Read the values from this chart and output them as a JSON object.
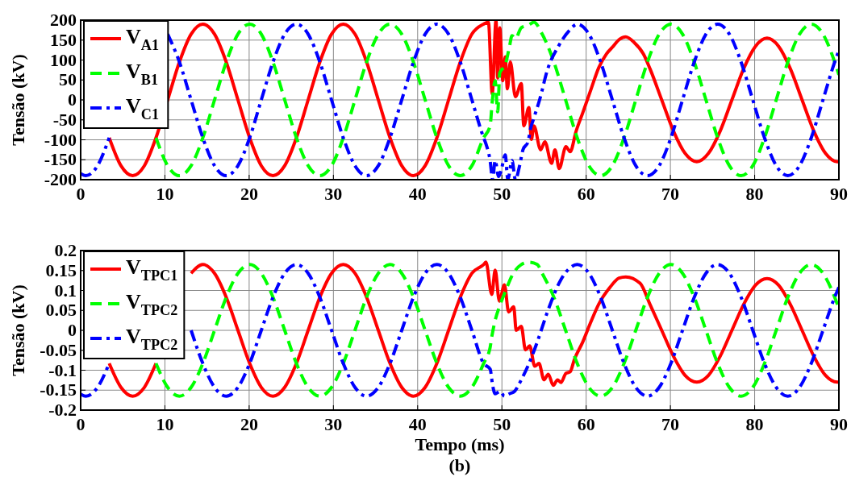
{
  "chart_data": [
    {
      "type": "line",
      "ylabel": "Tensão (kV)",
      "xlim": [
        0,
        90
      ],
      "ylim": [
        -200,
        200
      ],
      "xticks": [
        0,
        10,
        20,
        30,
        40,
        50,
        60,
        70,
        80,
        90
      ],
      "yticks": [
        -200,
        -150,
        -100,
        -50,
        0,
        50,
        100,
        150,
        200
      ],
      "grid": true,
      "legend": "top left",
      "series": [
        {
          "name": "V$_{A1}$",
          "color": "#ff0000",
          "line_style": "solid",
          "x": [
            3.39,
            4.78,
            6.17,
            7.56,
            8.94,
            10.33,
            11.72,
            13.11,
            14.5,
            15.89,
            17.28,
            18.67,
            20.06,
            21.44,
            22.83,
            24.22,
            25.61,
            27.0,
            28.39,
            29.78,
            31.17,
            32.56,
            33.94,
            35.33,
            36.72,
            38.11,
            39.5,
            40.89,
            42.28,
            43.67,
            45.06,
            46.44,
            47.83,
            48.4,
            48.85,
            49.3,
            49.5,
            49.75,
            50.1,
            50.4,
            50.65,
            51.0,
            51.6,
            52.3,
            52.6,
            53.2,
            53.5,
            53.8,
            54.6,
            55.1,
            55.9,
            56.3,
            56.8,
            57.6,
            58.1,
            58.8,
            59.6,
            60.6,
            61.5,
            62.4,
            63.2,
            63.9,
            64.7,
            65.7,
            66.8,
            67.58,
            68.97,
            70.36,
            71.74,
            73.13,
            74.52,
            75.91,
            77.3,
            78.69,
            80.08,
            81.47,
            82.86,
            84.24,
            85.63,
            87.02,
            88.41,
            89.8,
            90
          ],
          "values": [
            -95,
            -165,
            -190,
            -165,
            -95,
            0,
            95,
            165,
            190,
            165,
            95,
            0,
            -95,
            -165,
            -190,
            -165,
            -95,
            0,
            95,
            165,
            190,
            165,
            95,
            0,
            -95,
            -165,
            -190,
            -165,
            -95,
            0,
            95,
            165,
            190,
            195,
            15,
            200,
            55,
            181,
            48,
            108,
            28,
            95,
            8,
            41,
            -65,
            -19,
            -99,
            -65,
            -125,
            -105,
            -159,
            -125,
            -172,
            -117,
            -130,
            -79,
            -32,
            28,
            81,
            115,
            134,
            151,
            158,
            144,
            115,
            78,
            0,
            -78,
            -134,
            -155,
            -134,
            -78,
            0,
            78,
            134,
            155,
            134,
            78,
            0,
            -78,
            -134,
            -155,
            -155
          ]
        },
        {
          "name": "V$_{B1}$",
          "color": "#00ff00",
          "line_style": "dashed",
          "x": [
            8.94,
            10.33,
            11.72,
            13.11,
            14.5,
            15.89,
            17.28,
            18.67,
            20.06,
            21.44,
            22.83,
            24.22,
            25.61,
            27.0,
            28.39,
            29.78,
            31.17,
            32.56,
            33.94,
            35.33,
            36.72,
            38.11,
            39.5,
            40.89,
            42.28,
            43.67,
            45.06,
            46.44,
            47.83,
            48.6,
            48.85,
            49.2,
            49.5,
            49.75,
            50.4,
            50.9,
            51.2,
            51.6,
            52.3,
            53.2,
            53.8,
            54.78,
            56.17,
            57.56,
            58.94,
            60.33,
            61.72,
            63.11,
            64.5,
            65.89,
            67.28,
            68.67,
            70.06,
            71.44,
            72.83,
            74.22,
            75.61,
            77.0,
            78.39,
            79.78,
            81.17,
            82.56,
            83.94,
            85.33,
            86.72,
            88.11,
            89.5,
            90
          ],
          "values": [
            -95,
            -165,
            -190,
            -165,
            -95,
            0,
            95,
            165,
            190,
            165,
            95,
            0,
            -95,
            -165,
            -190,
            -165,
            -95,
            0,
            95,
            165,
            190,
            165,
            95,
            0,
            -95,
            -165,
            -190,
            -165,
            -95,
            -65,
            -5,
            48,
            -30,
            68,
            88,
            134,
            161,
            154,
            181,
            188,
            195,
            165,
            95,
            0,
            -95,
            -165,
            -190,
            -165,
            -95,
            0,
            95,
            165,
            190,
            165,
            95,
            0,
            -95,
            -165,
            -190,
            -165,
            -95,
            0,
            95,
            165,
            190,
            165,
            95,
            63
          ]
        },
        {
          "name": "V$_{C1}$",
          "color": "#0000ff",
          "line_style": "dashdot",
          "x": [
            0,
            0.61,
            2.0,
            3.39,
            4.78,
            6.17,
            7.56,
            8.94,
            10.33,
            11.72,
            13.11,
            14.5,
            15.89,
            17.28,
            18.67,
            20.06,
            21.44,
            22.83,
            24.22,
            25.61,
            27.0,
            28.39,
            29.78,
            31.17,
            32.56,
            33.94,
            35.33,
            36.72,
            38.11,
            39.5,
            40.89,
            42.28,
            43.67,
            45.06,
            46.44,
            47.83,
            48.1,
            48.6,
            48.9,
            49.2,
            49.6,
            49.9,
            50.4,
            50.7,
            51.2,
            51.6,
            52.1,
            52.5,
            53.1,
            53.4,
            53.8,
            54.5,
            55.4,
            56.7,
            58.0,
            58.94,
            60.33,
            61.72,
            63.11,
            64.5,
            65.89,
            67.28,
            68.67,
            70.06,
            71.44,
            72.83,
            74.22,
            75.61,
            77.0,
            78.39,
            79.78,
            81.17,
            82.56,
            83.94,
            85.33,
            86.72,
            88.11,
            89.5,
            90
          ],
          "values": [
            -185,
            -190,
            -165,
            -95,
            null,
            null,
            null,
            null,
            165,
            95,
            0,
            -95,
            -165,
            -190,
            -165,
            -95,
            0,
            95,
            165,
            190,
            165,
            95,
            0,
            -95,
            -165,
            -190,
            -165,
            -95,
            0,
            95,
            165,
            190,
            165,
            95,
            0,
            -95,
            -110,
            -152,
            -200,
            -152,
            -192,
            -178,
            -138,
            -200,
            -152,
            -200,
            -165,
            -125,
            -105,
            -72,
            -45,
            2,
            75,
            134,
            174,
            190,
            165,
            95,
            0,
            -95,
            -165,
            -190,
            -165,
            -95,
            0,
            95,
            165,
            190,
            165,
            95,
            0,
            -95,
            -165,
            -190,
            -165,
            -95,
            0,
            95,
            124
          ]
        }
      ]
    },
    {
      "type": "line",
      "ylabel": "Tensão (kV)",
      "xlabel": "Tempo (ms)",
      "annotations": [
        "(b)"
      ],
      "xlim": [
        0,
        90
      ],
      "ylim": [
        -0.2,
        0.2
      ],
      "xticks": [
        0,
        10,
        20,
        30,
        40,
        50,
        60,
        70,
        80,
        90
      ],
      "yticks": [
        -0.2,
        -0.15,
        -0.1,
        -0.05,
        0,
        0.05,
        0.1,
        0.15,
        0.2
      ],
      "grid": true,
      "legend": "top left",
      "series": [
        {
          "name": "V$_{TPC1}$",
          "color": "#ff0000",
          "line_style": "solid",
          "x": [
            3.39,
            4.78,
            6.17,
            7.56,
            8.94,
            10.33,
            11.72,
            13.11,
            14.5,
            15.89,
            17.28,
            18.67,
            20.06,
            21.44,
            22.83,
            24.22,
            25.61,
            27.0,
            28.39,
            29.78,
            31.17,
            32.56,
            33.94,
            35.33,
            36.72,
            38.11,
            39.5,
            40.89,
            42.28,
            43.67,
            45.06,
            46.44,
            47.83,
            48.1,
            48.8,
            49.2,
            49.7,
            50.3,
            50.8,
            51.4,
            51.7,
            52.3,
            52.8,
            53.3,
            53.9,
            54.4,
            55.0,
            55.5,
            56.1,
            56.6,
            57.0,
            57.6,
            58.1,
            58.6,
            59.6,
            60.5,
            61.5,
            62.8,
            63.9,
            64.7,
            66.4,
            67.58,
            68.97,
            70.36,
            71.74,
            73.13,
            74.52,
            75.91,
            77.3,
            78.69,
            80.08,
            81.47,
            82.86,
            84.24,
            85.63,
            87.02,
            88.41,
            89.8,
            90
          ],
          "values": [
            -0.083,
            -0.143,
            -0.165,
            -0.143,
            -0.083,
            null,
            null,
            0.143,
            0.165,
            0.143,
            0.083,
            0,
            -0.083,
            -0.143,
            -0.165,
            -0.143,
            -0.083,
            0,
            0.083,
            0.143,
            0.165,
            0.143,
            0.083,
            0,
            -0.083,
            -0.143,
            -0.165,
            -0.143,
            -0.083,
            0,
            0.083,
            0.143,
            0.165,
            0.171,
            0.09,
            0.151,
            0.073,
            0.114,
            0.046,
            0.059,
            0,
            0.01,
            -0.049,
            -0.039,
            -0.09,
            -0.083,
            -0.124,
            -0.11,
            -0.138,
            -0.124,
            -0.131,
            -0.108,
            -0.104,
            -0.073,
            -0.029,
            0.018,
            0.066,
            0.107,
            0.131,
            0.134,
            0.118,
            0.065,
            0,
            -0.065,
            -0.113,
            -0.13,
            -0.113,
            -0.065,
            0,
            0.065,
            0.113,
            0.13,
            0.113,
            0.065,
            0,
            -0.065,
            -0.113,
            -0.13,
            -0.13
          ]
        },
        {
          "name": "V$_{TPC2}$",
          "color": "#00ff00",
          "line_style": "dashed",
          "x": [
            8.94,
            10.33,
            11.72,
            13.11,
            14.5,
            15.89,
            17.28,
            18.67,
            20.06,
            21.44,
            22.83,
            24.22,
            25.61,
            27.0,
            28.39,
            29.78,
            31.17,
            32.56,
            33.94,
            35.33,
            36.72,
            38.11,
            39.5,
            40.89,
            42.28,
            43.67,
            45.06,
            46.44,
            47.83,
            48.6,
            48.8,
            49.2,
            49.7,
            50.4,
            51.3,
            52.3,
            53.2,
            54.2,
            54.78,
            56.17,
            57.56,
            58.94,
            60.33,
            61.72,
            63.11,
            64.5,
            65.89,
            67.28,
            68.67,
            70.06,
            71.44,
            72.83,
            74.22,
            75.61,
            77.0,
            78.39,
            79.78,
            81.17,
            82.56,
            83.94,
            85.33,
            86.72,
            88.11,
            89.5,
            90
          ],
          "values": [
            -0.083,
            -0.143,
            -0.165,
            -0.143,
            -0.083,
            0,
            0.083,
            0.143,
            0.165,
            0.143,
            0.083,
            0,
            -0.083,
            -0.143,
            -0.165,
            -0.143,
            -0.083,
            0,
            0.083,
            0.143,
            0.165,
            0.143,
            0.083,
            0,
            -0.083,
            -0.143,
            -0.165,
            -0.143,
            -0.083,
            -0.043,
            -0.016,
            0.025,
            0.059,
            0.097,
            0.141,
            0.165,
            0.171,
            0.165,
            0.143,
            0.083,
            0,
            -0.083,
            -0.143,
            -0.165,
            -0.143,
            -0.083,
            0,
            0.083,
            0.143,
            0.165,
            0.143,
            0.083,
            0,
            -0.083,
            -0.143,
            -0.165,
            -0.143,
            -0.083,
            0,
            0.083,
            0.143,
            0.165,
            0.143,
            0.083,
            0.055
          ]
        },
        {
          "name": "V$_{TPC2}$",
          "color": "#0000ff",
          "line_style": "dashdot",
          "x": [
            0,
            0.61,
            2.0,
            3.39,
            4.78,
            6.17,
            7.56,
            8.94,
            10.33,
            11.72,
            13.11,
            14.5,
            15.89,
            17.28,
            18.67,
            20.06,
            21.44,
            22.83,
            24.22,
            25.61,
            27.0,
            28.39,
            29.78,
            31.17,
            32.56,
            33.94,
            35.33,
            36.72,
            38.11,
            39.5,
            40.89,
            42.28,
            43.67,
            45.06,
            46.44,
            47.83,
            48.6,
            48.9,
            49.2,
            49.8,
            50.3,
            50.9,
            51.5,
            52.3,
            53.2,
            54.2,
            55.4,
            57.0,
            58.0,
            58.94,
            60.33,
            61.72,
            63.11,
            64.5,
            65.89,
            67.28,
            68.67,
            70.06,
            71.44,
            72.83,
            74.22,
            75.61,
            77.0,
            78.39,
            79.78,
            81.17,
            82.56,
            83.94,
            85.33,
            86.72,
            88.11,
            89.5,
            90
          ],
          "values": [
            -0.16,
            -0.165,
            -0.143,
            -0.083,
            null,
            null,
            null,
            null,
            null,
            null,
            0,
            -0.083,
            -0.143,
            -0.165,
            -0.143,
            -0.083,
            0,
            0.083,
            0.143,
            0.165,
            0.143,
            0.083,
            0,
            -0.083,
            -0.143,
            -0.165,
            -0.143,
            -0.083,
            0,
            0.083,
            0.143,
            0.165,
            0.143,
            0.083,
            0,
            -0.083,
            -0.097,
            -0.138,
            -0.159,
            -0.153,
            -0.165,
            -0.159,
            -0.153,
            -0.124,
            -0.084,
            -0.029,
            0.046,
            0.127,
            0.155,
            0.165,
            0.143,
            0.083,
            0,
            -0.083,
            -0.143,
            -0.165,
            -0.143,
            -0.083,
            0,
            0.083,
            0.143,
            0.165,
            0.143,
            0.083,
            0,
            -0.083,
            -0.143,
            -0.165,
            -0.143,
            -0.083,
            0,
            0.083,
            0.108
          ]
        }
      ]
    }
  ]
}
